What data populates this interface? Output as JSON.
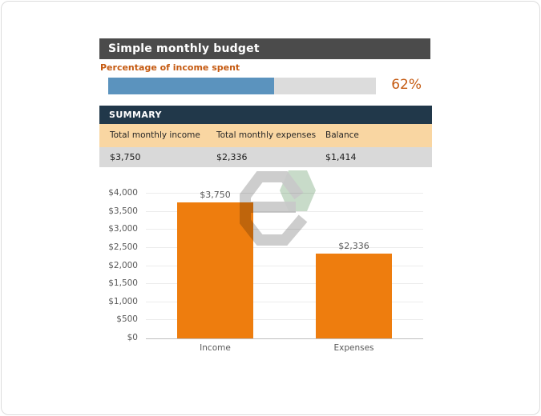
{
  "header": {
    "title": "Simple monthly budget"
  },
  "gauge": {
    "label": "Percentage of income spent",
    "percent": 62,
    "percent_label": "62%"
  },
  "summary": {
    "title": "SUMMARY",
    "columns": [
      {
        "label": "Total monthly income",
        "value": "$3,750"
      },
      {
        "label": "Total monthly expenses",
        "value": "$2,336"
      },
      {
        "label": "Balance",
        "value": "$1,414"
      }
    ]
  },
  "chart_data": {
    "type": "bar",
    "categories": [
      "Income",
      "Expenses"
    ],
    "values": [
      3750,
      2336
    ],
    "value_labels": [
      "$3,750",
      "$2,336"
    ],
    "title": "",
    "xlabel": "",
    "ylabel": "",
    "ylim": [
      0,
      4000
    ],
    "ytick_step": 500,
    "ytick_labels": [
      "$0",
      "$500",
      "$1,000",
      "$1,500",
      "$2,000",
      "$2,500",
      "$3,000",
      "$3,500",
      "$4,000"
    ],
    "grid": true,
    "legend": "none",
    "bar_color": "#ee7d0e",
    "label_color": "#595959"
  },
  "watermark": {
    "icon": "hexagon-e-logo"
  },
  "colors": {
    "title_bar_bg": "#4b4b4b",
    "title_text": "#ffffff",
    "accent_orange": "#c55a11",
    "gauge_fill": "#5b93be",
    "gauge_track": "#dcdcdc",
    "summary_header_bg": "#21384a",
    "summary_labels_bg": "#f9d6a2",
    "summary_values_bg": "#d9d9d9",
    "bar_orange": "#ee7d0e",
    "watermark_gray": "#c9c9c9",
    "watermark_green": "#c8dbc9"
  }
}
